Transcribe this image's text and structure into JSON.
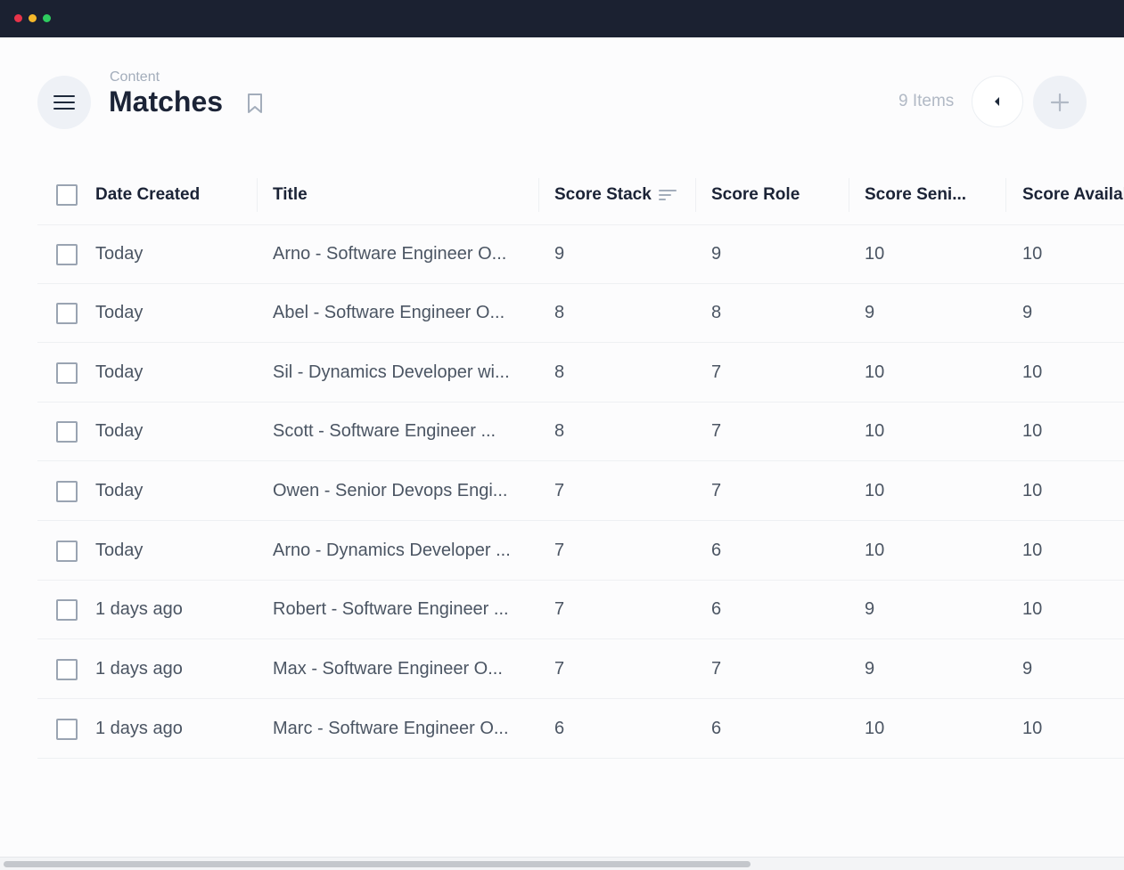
{
  "window": {
    "controls": [
      "close",
      "minimize",
      "maximize"
    ]
  },
  "header": {
    "breadcrumb": "Content",
    "title": "Matches",
    "items_count": "9 Items",
    "icons": {
      "menu": "hamburger-menu-icon",
      "bookmark": "bookmark-icon",
      "back": "caret-left-icon",
      "add": "plus-icon"
    }
  },
  "table": {
    "columns": {
      "date_created": "Date Created",
      "title": "Title",
      "score_stack": "Score Stack",
      "score_role": "Score Role",
      "score_seniority": "Score Seni...",
      "score_availability": "Score Availal"
    },
    "rows": [
      {
        "date": "Today",
        "title": "Arno - Software Engineer O...",
        "stack": "9",
        "role": "9",
        "seniority": "10",
        "availability": "10"
      },
      {
        "date": "Today",
        "title": "Abel - Software Engineer O...",
        "stack": "8",
        "role": "8",
        "seniority": "9",
        "availability": "9"
      },
      {
        "date": "Today",
        "title": "Sil - Dynamics Developer wi...",
        "stack": "8",
        "role": "7",
        "seniority": "10",
        "availability": "10"
      },
      {
        "date": "Today",
        "title": "Scott - Software Engineer ...",
        "stack": "8",
        "role": "7",
        "seniority": "10",
        "availability": "10"
      },
      {
        "date": "Today",
        "title": "Owen - Senior Devops Engi...",
        "stack": "7",
        "role": "7",
        "seniority": "10",
        "availability": "10"
      },
      {
        "date": "Today",
        "title": "Arno - Dynamics Developer ...",
        "stack": "7",
        "role": "6",
        "seniority": "10",
        "availability": "10"
      },
      {
        "date": "1 days ago",
        "title": "Robert - Software Engineer ...",
        "stack": "7",
        "role": "6",
        "seniority": "9",
        "availability": "10"
      },
      {
        "date": "1 days ago",
        "title": "Max - Software Engineer O...",
        "stack": "7",
        "role": "7",
        "seniority": "9",
        "availability": "9"
      },
      {
        "date": "1 days ago",
        "title": "Marc - Software Engineer O...",
        "stack": "6",
        "role": "6",
        "seniority": "10",
        "availability": "10"
      }
    ]
  },
  "colors": {
    "titlebar": "#1b2131",
    "accent_text": "#1b2336",
    "muted": "#a3adbb"
  }
}
